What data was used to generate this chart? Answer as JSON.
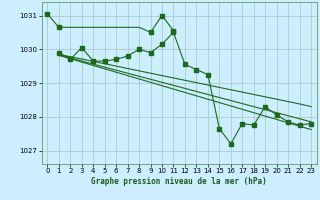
{
  "title": "Graphe pression niveau de la mer (hPa)",
  "background_color": "#cceeff",
  "grid_color": "#aacccc",
  "line_color": "#1a6b1a",
  "xlim": [
    -0.5,
    23.5
  ],
  "ylim": [
    1026.6,
    1031.4
  ],
  "yticks": [
    1027,
    1028,
    1029,
    1030,
    1031
  ],
  "xticks": [
    0,
    1,
    2,
    3,
    4,
    5,
    6,
    7,
    8,
    9,
    10,
    11,
    12,
    13,
    14,
    15,
    16,
    17,
    18,
    19,
    20,
    21,
    22,
    23
  ],
  "series_flat": {
    "x": [
      0,
      1,
      2,
      3,
      4,
      5,
      6,
      7,
      8,
      9,
      10,
      11
    ],
    "y": [
      1031.05,
      1030.65,
      1030.65,
      1030.65,
      1030.65,
      1030.65,
      1030.65,
      1030.65,
      1030.65,
      1030.5,
      1031.0,
      1030.55
    ],
    "markers": [
      0,
      1,
      9,
      10,
      11
    ]
  },
  "series_zigzag": {
    "x": [
      1,
      2,
      3,
      4,
      5,
      6,
      7,
      8,
      9,
      10,
      11,
      12,
      13,
      14,
      15,
      16,
      17,
      18,
      19,
      20,
      21,
      22,
      23
    ],
    "y": [
      1029.9,
      1029.7,
      1030.05,
      1029.65,
      1029.65,
      1029.7,
      1029.8,
      1030.0,
      1029.9,
      1030.15,
      1030.5,
      1029.55,
      1029.4,
      1029.25,
      1027.65,
      1027.2,
      1027.8,
      1027.75,
      1028.3,
      1028.05,
      1027.85,
      1027.75,
      1027.8
    ]
  },
  "series_decline1": {
    "x": [
      1,
      2,
      3,
      4,
      5,
      6,
      7,
      8,
      9,
      10,
      11,
      12,
      13,
      14,
      15,
      16,
      17,
      18,
      19,
      20,
      21,
      22,
      23
    ],
    "y": [
      1029.85,
      1029.78,
      1029.71,
      1029.64,
      1029.57,
      1029.5,
      1029.43,
      1029.36,
      1029.29,
      1029.22,
      1029.15,
      1029.08,
      1029.01,
      1028.94,
      1028.87,
      1028.8,
      1028.73,
      1028.66,
      1028.59,
      1028.52,
      1028.45,
      1028.38,
      1028.3
    ]
  },
  "series_decline2": {
    "x": [
      1,
      2,
      3,
      4,
      5,
      6,
      7,
      8,
      9,
      10,
      11,
      12,
      13,
      14,
      15,
      16,
      17,
      18,
      19,
      20,
      21,
      22,
      23
    ],
    "y": [
      1029.85,
      1029.75,
      1029.65,
      1029.56,
      1029.47,
      1029.38,
      1029.29,
      1029.2,
      1029.11,
      1029.02,
      1028.93,
      1028.84,
      1028.75,
      1028.66,
      1028.57,
      1028.48,
      1028.39,
      1028.3,
      1028.21,
      1028.12,
      1028.03,
      1027.94,
      1027.85
    ]
  },
  "series_decline3": {
    "x": [
      1,
      2,
      3,
      4,
      5,
      6,
      7,
      8,
      9,
      10,
      11,
      12,
      13,
      14,
      15,
      16,
      17,
      18,
      19,
      20,
      21,
      22,
      23
    ],
    "y": [
      1029.82,
      1029.72,
      1029.62,
      1029.52,
      1029.42,
      1029.32,
      1029.22,
      1029.12,
      1029.02,
      1028.92,
      1028.82,
      1028.72,
      1028.62,
      1028.52,
      1028.42,
      1028.32,
      1028.22,
      1028.12,
      1028.02,
      1027.92,
      1027.82,
      1027.72,
      1027.62
    ]
  }
}
